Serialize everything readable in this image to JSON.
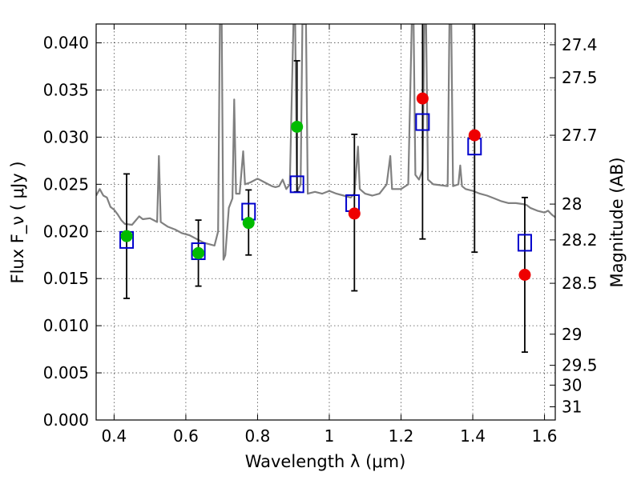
{
  "chart_data": {
    "type": "scatter",
    "xlabel": "Wavelength  λ (μm)",
    "ylabel": "Flux  F_ν  ( μJy )",
    "ylabel_right": "Magnitude (AB)",
    "xlim": [
      0.35,
      1.63
    ],
    "ylim": [
      0.0,
      0.042
    ],
    "grid": true,
    "x_ticks": [
      0.4,
      0.6,
      0.8,
      1.0,
      1.2,
      1.4,
      1.6
    ],
    "x_tick_labels": [
      "0.4",
      "0.6",
      "0.8",
      "1",
      "1.2",
      "1.4",
      "1.6"
    ],
    "y_ticks": [
      0.0,
      0.005,
      0.01,
      0.015,
      0.02,
      0.025,
      0.03,
      0.035,
      0.04
    ],
    "y_tick_labels": [
      "0.000",
      "0.005",
      "0.010",
      "0.015",
      "0.020",
      "0.025",
      "0.030",
      "0.035",
      "0.040"
    ],
    "right_ticks": [
      {
        "label": "27.4",
        "flux": 0.0398
      },
      {
        "label": "27.5",
        "flux": 0.0363
      },
      {
        "label": "27.7",
        "flux": 0.0302
      },
      {
        "label": "28",
        "flux": 0.0229
      },
      {
        "label": "28.2",
        "flux": 0.0191
      },
      {
        "label": "28.5",
        "flux": 0.0145
      },
      {
        "label": "29",
        "flux": 0.0091
      },
      {
        "label": "29.5",
        "flux": 0.0058
      },
      {
        "label": "30",
        "flux": 0.0037
      },
      {
        "label": "31",
        "flux": 0.0014
      }
    ],
    "series": [
      {
        "kind": "sed_model",
        "color": "#808080",
        "points": [
          [
            0.35,
            0.0238
          ],
          [
            0.36,
            0.0245
          ],
          [
            0.37,
            0.0238
          ],
          [
            0.38,
            0.0236
          ],
          [
            0.39,
            0.0226
          ],
          [
            0.4,
            0.0223
          ],
          [
            0.41,
            0.0218
          ],
          [
            0.42,
            0.0212
          ],
          [
            0.43,
            0.0208
          ],
          [
            0.45,
            0.0207
          ],
          [
            0.47,
            0.0216
          ],
          [
            0.48,
            0.0213
          ],
          [
            0.5,
            0.0214
          ],
          [
            0.51,
            0.0212
          ],
          [
            0.52,
            0.021
          ],
          [
            0.525,
            0.028
          ],
          [
            0.53,
            0.021
          ],
          [
            0.55,
            0.0205
          ],
          [
            0.57,
            0.0202
          ],
          [
            0.59,
            0.0198
          ],
          [
            0.61,
            0.0196
          ],
          [
            0.63,
            0.0192
          ],
          [
            0.65,
            0.0188
          ],
          [
            0.67,
            0.0186
          ],
          [
            0.68,
            0.0185
          ],
          [
            0.69,
            0.02
          ],
          [
            0.695,
            0.042
          ],
          [
            0.7,
            0.042
          ],
          [
            0.705,
            0.017
          ],
          [
            0.71,
            0.0175
          ],
          [
            0.72,
            0.0225
          ],
          [
            0.73,
            0.0235
          ],
          [
            0.735,
            0.034
          ],
          [
            0.74,
            0.024
          ],
          [
            0.75,
            0.024
          ],
          [
            0.76,
            0.0285
          ],
          [
            0.765,
            0.025
          ],
          [
            0.78,
            0.0252
          ],
          [
            0.79,
            0.0254
          ],
          [
            0.8,
            0.0256
          ],
          [
            0.81,
            0.0254
          ],
          [
            0.82,
            0.0252
          ],
          [
            0.83,
            0.025
          ],
          [
            0.84,
            0.0248
          ],
          [
            0.85,
            0.0247
          ],
          [
            0.86,
            0.0248
          ],
          [
            0.87,
            0.0255
          ],
          [
            0.88,
            0.0245
          ],
          [
            0.89,
            0.025
          ],
          [
            0.9,
            0.042
          ],
          [
            0.905,
            0.042
          ],
          [
            0.91,
            0.0242
          ],
          [
            0.92,
            0.025
          ],
          [
            0.925,
            0.042
          ],
          [
            0.935,
            0.042
          ],
          [
            0.94,
            0.024
          ],
          [
            0.96,
            0.0242
          ],
          [
            0.98,
            0.024
          ],
          [
            1.0,
            0.0243
          ],
          [
            1.02,
            0.024
          ],
          [
            1.04,
            0.0238
          ],
          [
            1.06,
            0.0236
          ],
          [
            1.07,
            0.024
          ],
          [
            1.08,
            0.029
          ],
          [
            1.085,
            0.0245
          ],
          [
            1.1,
            0.024
          ],
          [
            1.12,
            0.0238
          ],
          [
            1.14,
            0.024
          ],
          [
            1.16,
            0.025
          ],
          [
            1.17,
            0.028
          ],
          [
            1.175,
            0.0245
          ],
          [
            1.2,
            0.0245
          ],
          [
            1.22,
            0.025
          ],
          [
            1.23,
            0.042
          ],
          [
            1.235,
            0.042
          ],
          [
            1.24,
            0.026
          ],
          [
            1.25,
            0.0255
          ],
          [
            1.26,
            0.0265
          ],
          [
            1.265,
            0.042
          ],
          [
            1.27,
            0.042
          ],
          [
            1.275,
            0.0255
          ],
          [
            1.29,
            0.025
          ],
          [
            1.31,
            0.0249
          ],
          [
            1.33,
            0.0248
          ],
          [
            1.335,
            0.042
          ],
          [
            1.34,
            0.042
          ],
          [
            1.345,
            0.0248
          ],
          [
            1.36,
            0.025
          ],
          [
            1.365,
            0.027
          ],
          [
            1.37,
            0.0248
          ],
          [
            1.38,
            0.0245
          ],
          [
            1.4,
            0.0243
          ],
          [
            1.42,
            0.024
          ],
          [
            1.44,
            0.0238
          ],
          [
            1.46,
            0.0235
          ],
          [
            1.48,
            0.0232
          ],
          [
            1.5,
            0.023
          ],
          [
            1.52,
            0.023
          ],
          [
            1.54,
            0.0229
          ],
          [
            1.55,
            0.0228
          ],
          [
            1.56,
            0.0225
          ],
          [
            1.58,
            0.0222
          ],
          [
            1.6,
            0.022
          ],
          [
            1.61,
            0.0222
          ],
          [
            1.62,
            0.0218
          ],
          [
            1.63,
            0.0215
          ]
        ]
      },
      {
        "kind": "model_fluxes",
        "marker": "open-square",
        "color": "#0000cc",
        "x": [
          0.435,
          0.635,
          0.775,
          0.91,
          1.065,
          1.26,
          1.405,
          1.545
        ],
        "y": [
          0.0191,
          0.0179,
          0.0221,
          0.025,
          0.023,
          0.0316,
          0.029,
          0.0188
        ]
      },
      {
        "kind": "observed_flux",
        "marker": "filled-circle",
        "color": "#00bb00",
        "x": [
          0.435,
          0.635,
          0.775,
          0.91
        ],
        "y": [
          0.0195,
          0.0177,
          0.0209,
          0.0311
        ],
        "yerr_low": [
          0.0129,
          0.0142,
          0.0175,
          0.0242
        ],
        "yerr_high": [
          0.0261,
          0.0212,
          0.0244,
          0.0381
        ]
      },
      {
        "kind": "observed_flux",
        "marker": "filled-circle",
        "color": "#ee0000",
        "x": [
          1.07,
          1.26,
          1.405,
          1.545
        ],
        "y": [
          0.0219,
          0.0341,
          0.0302,
          0.0154
        ],
        "yerr_low": [
          0.0137,
          0.0192,
          0.0178,
          0.0072
        ],
        "yerr_high": [
          0.0303,
          0.042,
          0.042,
          0.0236
        ]
      }
    ]
  }
}
